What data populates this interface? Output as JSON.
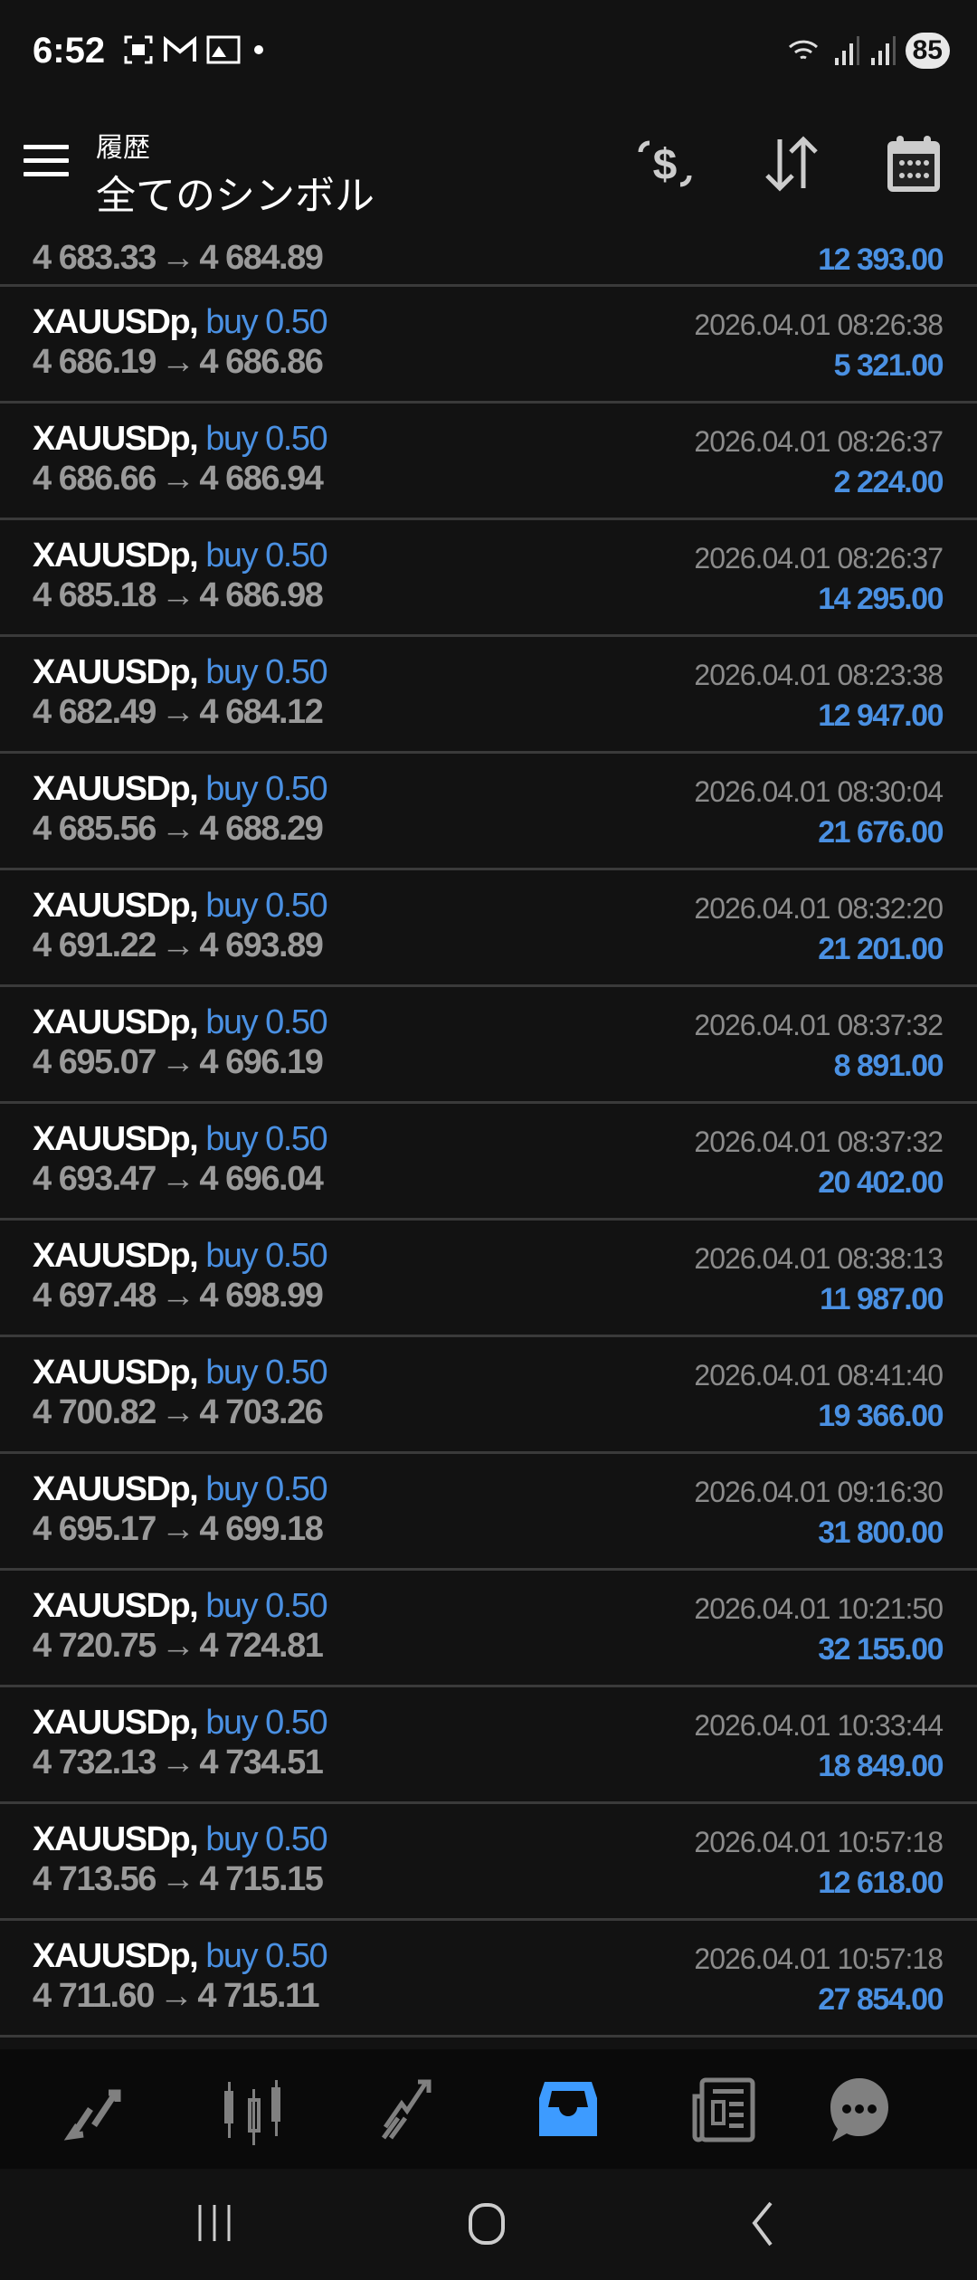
{
  "status_bar": {
    "time": "6:52",
    "battery": "85",
    "left_icons": [
      "screenshot-icon",
      "gmail-icon",
      "gallery-icon",
      "dot-icon"
    ],
    "right_icons": [
      "wifi-6-icon",
      "signal-icon",
      "signal-icon"
    ]
  },
  "header": {
    "subtitle": "履歴",
    "title": "全てのシンボル",
    "icons": [
      "currency-exchange-icon",
      "sort-icon",
      "calendar-icon"
    ]
  },
  "partial_row": {
    "open": "4 683.33",
    "close": "4 684.89",
    "profit": "12 393.00"
  },
  "arrow": "→",
  "trades": [
    {
      "symbol": "XAUUSDp,",
      "side": "buy 0.50",
      "time": "2026.04.01 08:26:38",
      "open": "4 686.19",
      "close": "4 686.86",
      "profit": "5 321.00"
    },
    {
      "symbol": "XAUUSDp,",
      "side": "buy 0.50",
      "time": "2026.04.01 08:26:37",
      "open": "4 686.66",
      "close": "4 686.94",
      "profit": "2 224.00"
    },
    {
      "symbol": "XAUUSDp,",
      "side": "buy 0.50",
      "time": "2026.04.01 08:26:37",
      "open": "4 685.18",
      "close": "4 686.98",
      "profit": "14 295.00"
    },
    {
      "symbol": "XAUUSDp,",
      "side": "buy 0.50",
      "time": "2026.04.01 08:23:38",
      "open": "4 682.49",
      "close": "4 684.12",
      "profit": "12 947.00"
    },
    {
      "symbol": "XAUUSDp,",
      "side": "buy 0.50",
      "time": "2026.04.01 08:30:04",
      "open": "4 685.56",
      "close": "4 688.29",
      "profit": "21 676.00"
    },
    {
      "symbol": "XAUUSDp,",
      "side": "buy 0.50",
      "time": "2026.04.01 08:32:20",
      "open": "4 691.22",
      "close": "4 693.89",
      "profit": "21 201.00"
    },
    {
      "symbol": "XAUUSDp,",
      "side": "buy 0.50",
      "time": "2026.04.01 08:37:32",
      "open": "4 695.07",
      "close": "4 696.19",
      "profit": "8 891.00"
    },
    {
      "symbol": "XAUUSDp,",
      "side": "buy 0.50",
      "time": "2026.04.01 08:37:32",
      "open": "4 693.47",
      "close": "4 696.04",
      "profit": "20 402.00"
    },
    {
      "symbol": "XAUUSDp,",
      "side": "buy 0.50",
      "time": "2026.04.01 08:38:13",
      "open": "4 697.48",
      "close": "4 698.99",
      "profit": "11 987.00"
    },
    {
      "symbol": "XAUUSDp,",
      "side": "buy 0.50",
      "time": "2026.04.01 08:41:40",
      "open": "4 700.82",
      "close": "4 703.26",
      "profit": "19 366.00"
    },
    {
      "symbol": "XAUUSDp,",
      "side": "buy 0.50",
      "time": "2026.04.01 09:16:30",
      "open": "4 695.17",
      "close": "4 699.18",
      "profit": "31 800.00"
    },
    {
      "symbol": "XAUUSDp,",
      "side": "buy 0.50",
      "time": "2026.04.01 10:21:50",
      "open": "4 720.75",
      "close": "4 724.81",
      "profit": "32 155.00"
    },
    {
      "symbol": "XAUUSDp,",
      "side": "buy 0.50",
      "time": "2026.04.01 10:33:44",
      "open": "4 732.13",
      "close": "4 734.51",
      "profit": "18 849.00"
    },
    {
      "symbol": "XAUUSDp,",
      "side": "buy 0.50",
      "time": "2026.04.01 10:57:18",
      "open": "4 713.56",
      "close": "4 715.15",
      "profit": "12 618.00"
    },
    {
      "symbol": "XAUUSDp,",
      "side": "buy 0.50",
      "time": "2026.04.01 10:57:18",
      "open": "4 711.60",
      "close": "4 715.11",
      "profit": "27 854.00"
    }
  ],
  "bottom_nav": {
    "active": "history",
    "items": [
      "quotes",
      "chart",
      "trade",
      "history",
      "news",
      "messages"
    ]
  },
  "colors": {
    "accent": "#4a90e2",
    "background": "#121212",
    "price_gray": "#9a9a9a",
    "icon_gray": "#808080"
  }
}
